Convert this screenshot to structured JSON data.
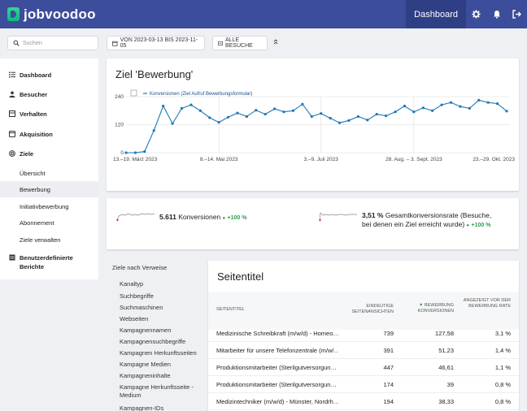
{
  "app": {
    "name": "jobvoodoo"
  },
  "topbar": {
    "dashboard_label": "Dashboard",
    "icons": [
      "gear-icon",
      "bell-icon",
      "logout-icon"
    ]
  },
  "controls": {
    "search_placeholder": "Suchen",
    "date_range": "VON 2023-03-13 BIS 2023-11-05",
    "segment": "ALLE BESUCHE"
  },
  "sidebar": {
    "items": [
      {
        "label": "Dashboard",
        "level": "top",
        "icon": "dashboard-icon"
      },
      {
        "label": "Besucher",
        "level": "top",
        "icon": "visitors-icon"
      },
      {
        "label": "Verhalten",
        "level": "top",
        "icon": "behaviour-icon"
      },
      {
        "label": "Akquisition",
        "level": "top",
        "icon": "acquisition-icon"
      },
      {
        "label": "Ziele",
        "level": "top",
        "icon": "goals-icon"
      },
      {
        "label": "Übersicht",
        "level": "sub"
      },
      {
        "label": "Bewerbung",
        "level": "sub",
        "active": true
      },
      {
        "label": "Initiativbewerbung",
        "level": "sub"
      },
      {
        "label": "Abonnement",
        "level": "sub"
      },
      {
        "label": "Ziele verwalten",
        "level": "sub"
      },
      {
        "label": "Benutzerdefinierte Berichte",
        "level": "top",
        "icon": "reports-icon"
      }
    ]
  },
  "goal": {
    "title": "Ziel 'Bewerbung'"
  },
  "chart_data": {
    "type": "line",
    "series": [
      {
        "name": "Konversionen (Ziel Aufruf Bewerbungsformular)",
        "color": "#1f77b4",
        "values": [
          0,
          0,
          5,
          95,
          200,
          125,
          190,
          205,
          180,
          150,
          130,
          152,
          170,
          155,
          182,
          165,
          188,
          175,
          180,
          208,
          155,
          168,
          148,
          128,
          138,
          155,
          140,
          165,
          158,
          175,
          200,
          175,
          192,
          180,
          205,
          215,
          198,
          190,
          225,
          215,
          210,
          178
        ]
      }
    ],
    "x_tick_labels": [
      "13.–19. März 2023",
      "8.–14. Mai 2023",
      "3.–9. Juli 2023",
      "28. Aug. – 3. Sept. 2023",
      "23.–29. Okt. 2023"
    ],
    "y_ticks": [
      "0",
      "120",
      "240"
    ],
    "ylim": [
      0,
      240
    ],
    "grid": true,
    "legend": "top-left"
  },
  "kpis": {
    "conversions": {
      "value": "5.611",
      "label": "Konversionen",
      "change": "+100 %"
    },
    "rate": {
      "value": "3,51 %",
      "label": "Gesamtkonversionsrate (Besuche, bei denen ein Ziel erreicht wurde)",
      "change": "+100 %"
    }
  },
  "referrers": {
    "heading": "Ziele nach Verweise",
    "items": [
      "Kanaltyp",
      "Suchbegriffe",
      "Suchmaschinen",
      "Webseiten",
      "Kampagnennamen",
      "Kampagnensuchbegriffe",
      "Kampagnen Herkunftsseiten",
      "Kampagne Medien",
      "Kampagneninhalte",
      "Kampagne Herkunftsseite - Medium",
      "Kampagnen-IDs"
    ]
  },
  "table": {
    "title": "Seitentitel",
    "columns": {
      "title": "SEITENTITEL",
      "unique": "EINDEUTIGE SEITENANSICHTEN",
      "conversions": "BEWERBUNG KONVERSIONEN",
      "rate": "ANGEZEIGT VOR DER BEWERBUNG RATE"
    },
    "rows": [
      {
        "title": "Medizinische Schreibkraft (m/w/d) - Homeo…",
        "unique": "739",
        "conversions": "127,58",
        "rate": "3,1 %"
      },
      {
        "title": "Mitarbeiter für unsere Telefonzentrale (m/w/…",
        "unique": "391",
        "conversions": "51,23",
        "rate": "1,4 %"
      },
      {
        "title": "Produktionsmitarbeiter (Sterilgutversorgun…",
        "unique": "447",
        "conversions": "46,61",
        "rate": "1,1 %"
      },
      {
        "title": "Produktionsmitarbeiter (Sterilgutversorgun…",
        "unique": "174",
        "conversions": "39",
        "rate": "0,8 %"
      },
      {
        "title": "Medizintechniker (m/w/d) - Münster, Nordrh…",
        "unique": "194",
        "conversions": "38,33",
        "rate": "0,8 %"
      }
    ]
  }
}
